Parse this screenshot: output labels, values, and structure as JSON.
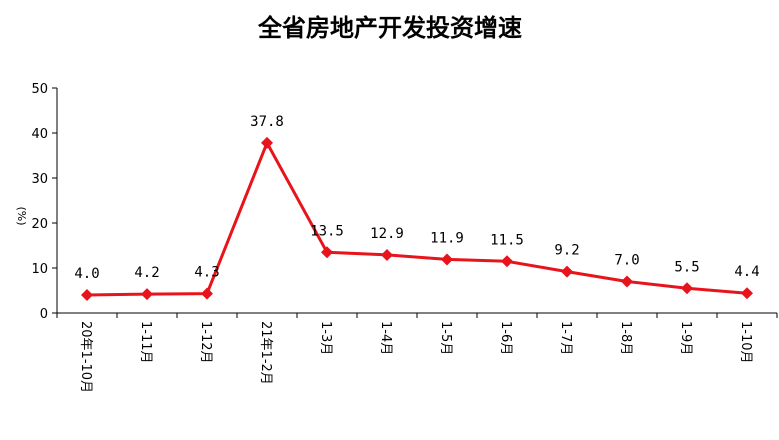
{
  "chart_data": {
    "type": "line",
    "title": "全省房地产开发投资增速",
    "ylabel": "(%)",
    "xlabel": "",
    "categories": [
      "20年1-10月",
      "1-11月",
      "1-12月",
      "21年1-2月",
      "1-3月",
      "1-4月",
      "1-5月",
      "1-6月",
      "1-7月",
      "1-8月",
      "1-9月",
      "1-10月"
    ],
    "series": [
      {
        "values": [
          4.0,
          4.2,
          4.3,
          37.8,
          13.5,
          12.9,
          11.9,
          11.5,
          9.2,
          7.0,
          5.5,
          4.4
        ]
      }
    ],
    "data_labels": [
      "4.0",
      "4.2",
      "4.3",
      "37.8",
      "13.5",
      "12.9",
      "11.9",
      "11.5",
      "9.2",
      "7.0",
      "5.5",
      "4.4"
    ],
    "ylim": [
      0,
      50
    ],
    "yticks": [
      "0",
      "10",
      "20",
      "30",
      "40",
      "50"
    ],
    "grid": false,
    "marker": "diamond",
    "line_color": "#e8141c"
  }
}
